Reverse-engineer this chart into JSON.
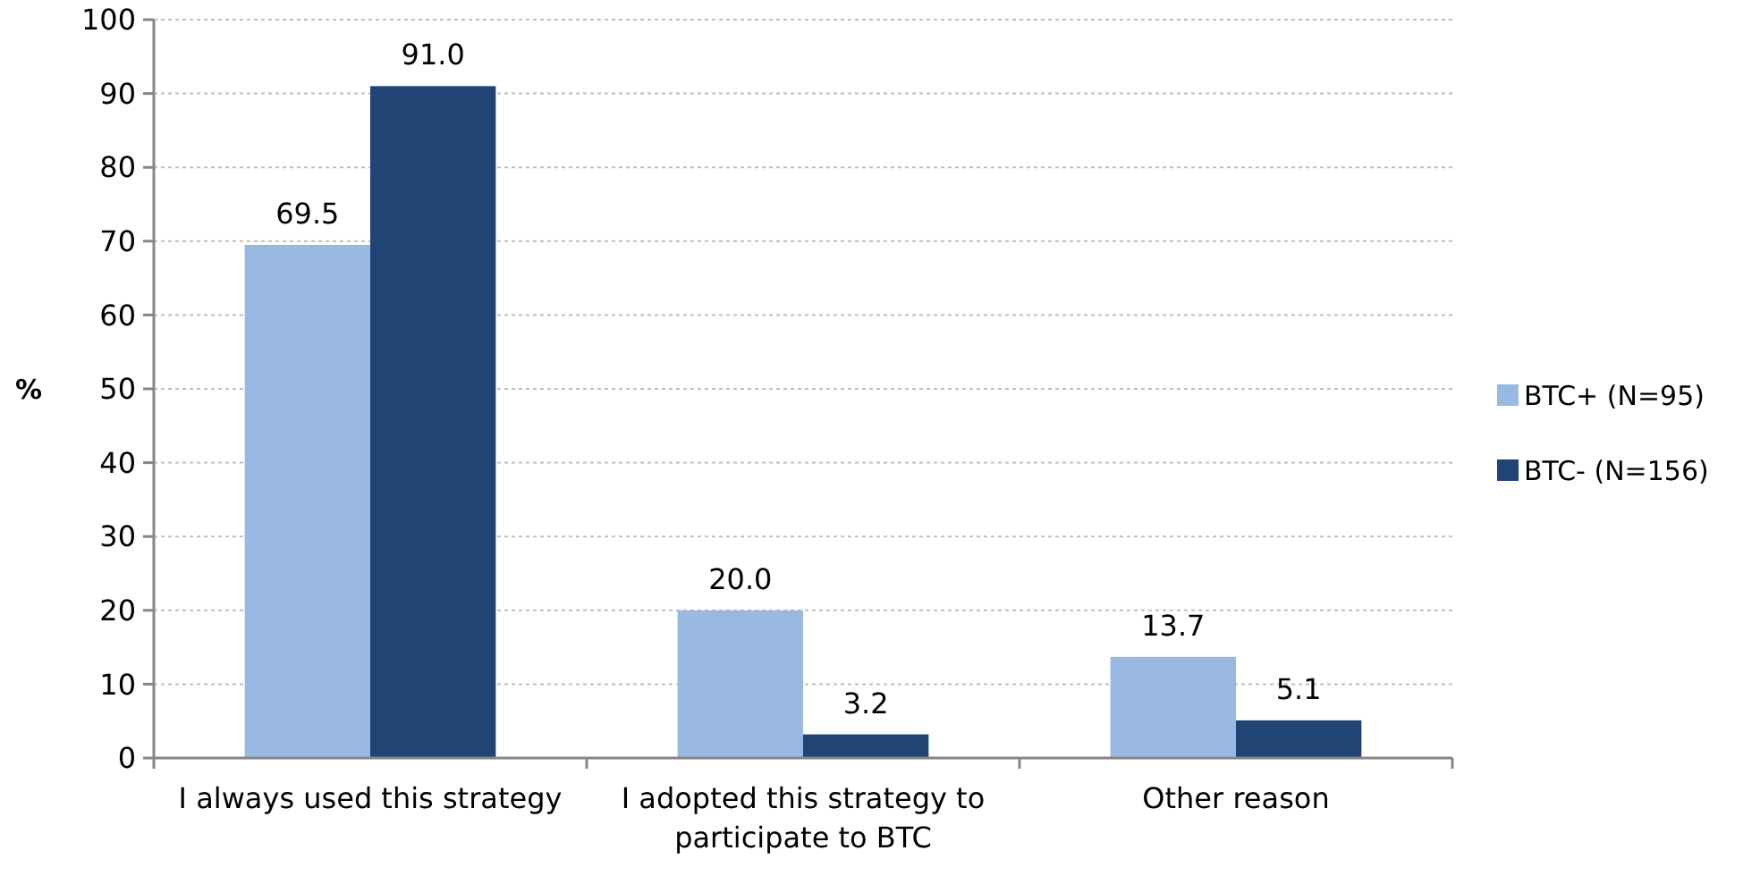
{
  "chart_data": {
    "type": "bar",
    "ylabel": "%",
    "categories": [
      "I always used this strategy",
      "I adopted this strategy to participate to BTC",
      "Other reason"
    ],
    "series": [
      {
        "name": "BTC+ (N=95)",
        "color": "#99b9e3",
        "values": [
          69.5,
          20.0,
          13.7
        ],
        "value_labels": [
          "69.5",
          "20.0",
          "13.7"
        ]
      },
      {
        "name": "BTC- (N=156)",
        "color": "#214475",
        "values": [
          91.0,
          3.2,
          5.1
        ],
        "value_labels": [
          "91.0",
          "3.2",
          "5.1"
        ]
      }
    ],
    "ylim": [
      0,
      100
    ],
    "yticks": [
      0,
      10,
      20,
      30,
      40,
      50,
      60,
      70,
      80,
      90,
      100
    ],
    "grid": "y",
    "legend": "right"
  }
}
